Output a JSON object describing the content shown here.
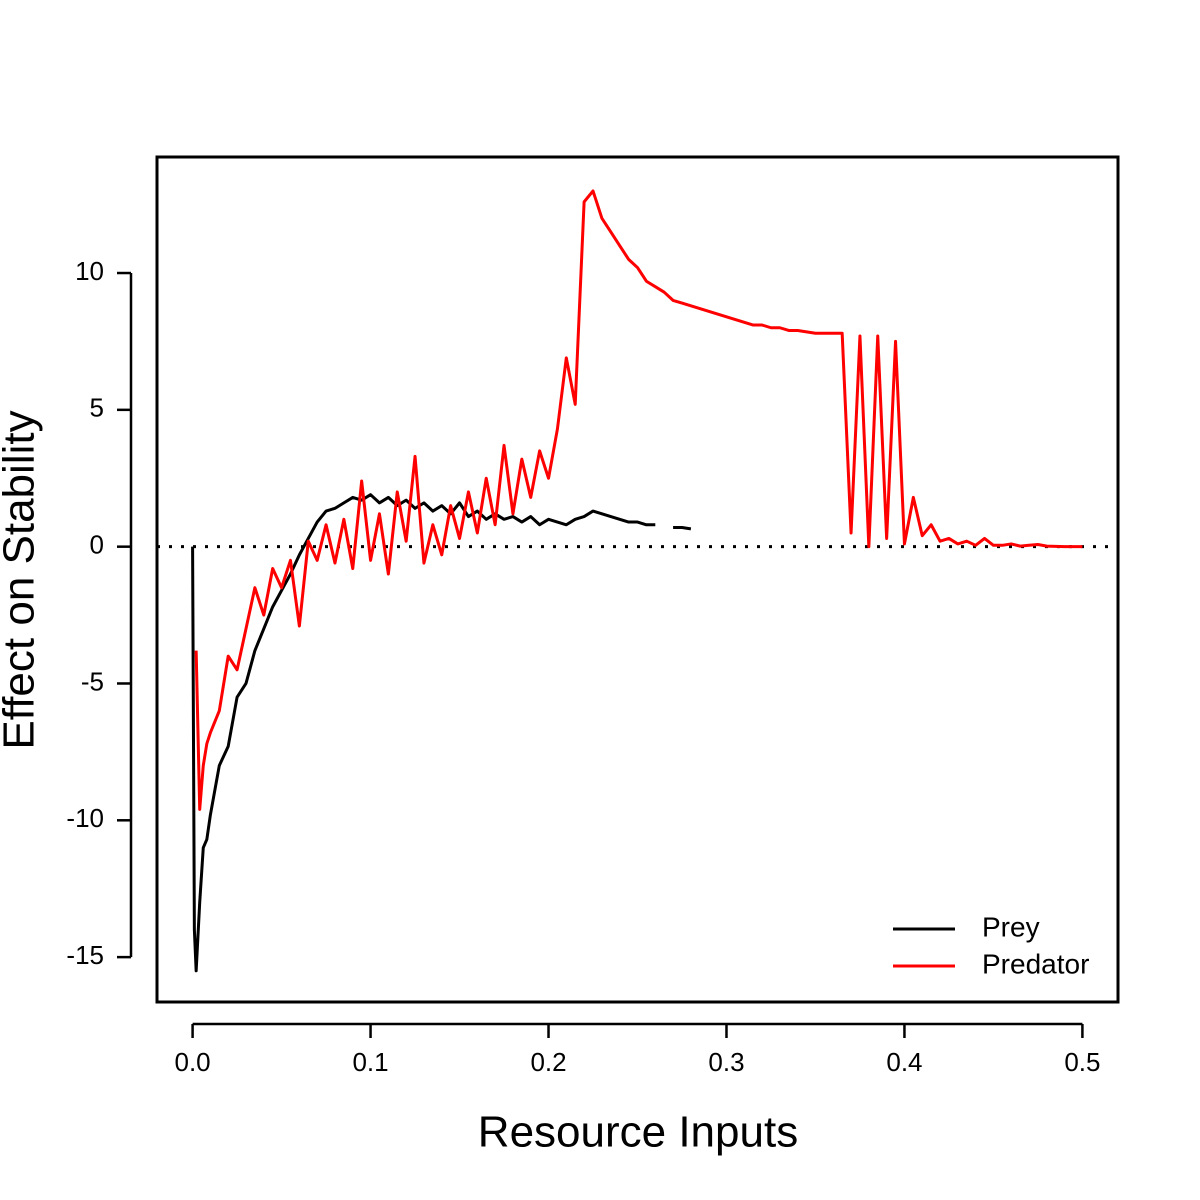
{
  "chart_data": {
    "type": "line",
    "xlabel": "Resource Inputs",
    "ylabel": "Effect on Stability",
    "x": [
      0,
      0.001,
      0.002,
      0.004,
      0.006,
      0.008,
      0.01,
      0.015,
      0.02,
      0.025,
      0.03,
      0.035,
      0.04,
      0.045,
      0.05,
      0.055,
      0.06,
      0.065,
      0.07,
      0.075,
      0.08,
      0.085,
      0.09,
      0.095,
      0.1,
      0.105,
      0.11,
      0.115,
      0.12,
      0.125,
      0.13,
      0.135,
      0.14,
      0.145,
      0.15,
      0.155,
      0.16,
      0.165,
      0.17,
      0.175,
      0.18,
      0.185,
      0.19,
      0.195,
      0.2,
      0.205,
      0.21,
      0.215,
      0.22,
      0.225,
      0.23,
      0.235,
      0.24,
      0.245,
      0.25,
      0.255,
      0.26,
      0.265,
      0.27,
      0.275,
      0.28,
      0.285,
      0.29,
      0.295,
      0.3,
      0.305,
      0.31,
      0.315,
      0.32,
      0.325,
      0.33,
      0.335,
      0.34,
      0.345,
      0.35,
      0.355,
      0.36,
      0.365,
      0.37,
      0.375,
      0.38,
      0.385,
      0.39,
      0.395,
      0.4,
      0.405,
      0.41,
      0.415,
      0.42,
      0.425,
      0.43,
      0.435,
      0.44,
      0.445,
      0.45,
      0.455,
      0.46,
      0.465,
      0.47,
      0.475,
      0.48,
      0.485,
      0.49,
      0.495,
      0.5
    ],
    "series": [
      {
        "name": "Prey",
        "color": "#000000",
        "values": [
          0,
          -14,
          -15.5,
          -13,
          -11,
          -10.7,
          -9.8,
          -8,
          -7.3,
          -5.5,
          -5,
          -3.8,
          -3,
          -2.2,
          -1.6,
          -1,
          -0.3,
          0.3,
          0.9,
          1.3,
          1.4,
          1.6,
          1.8,
          1.7,
          1.9,
          1.6,
          1.8,
          1.5,
          1.7,
          1.4,
          1.6,
          1.3,
          1.5,
          1.2,
          1.6,
          1.1,
          1.3,
          1.0,
          1.2,
          1.0,
          1.1,
          0.9,
          1.1,
          0.8,
          1.0,
          0.9,
          0.8,
          1.0,
          1.1,
          1.3,
          1.2,
          1.1,
          1.0,
          0.9,
          0.9,
          0.8,
          0.8,
          null,
          0.7,
          0.7,
          0.65,
          null,
          null,
          null,
          null,
          null,
          null,
          null,
          null,
          null,
          null,
          null,
          null,
          null,
          null,
          null,
          null,
          null,
          null,
          null,
          null,
          null,
          null,
          null,
          null,
          null,
          null,
          null,
          null,
          null,
          null,
          null,
          null,
          null,
          null,
          null,
          null,
          null,
          null,
          null,
          null,
          null,
          null,
          null,
          null
        ]
      },
      {
        "name": "Predator",
        "color": "#ff0000",
        "values": [
          null,
          null,
          -3.8,
          -9.6,
          -8,
          -7.2,
          -6.8,
          -6,
          -4,
          -4.5,
          -3,
          -1.5,
          -2.5,
          -0.8,
          -1.5,
          -0.5,
          -2.9,
          0.2,
          -0.5,
          0.8,
          -0.6,
          1.0,
          -0.8,
          2.4,
          -0.5,
          1.2,
          -1.0,
          2.0,
          0.2,
          3.3,
          -0.6,
          0.8,
          -0.3,
          1.5,
          0.3,
          2.0,
          0.5,
          2.5,
          0.8,
          3.7,
          1.2,
          3.2,
          1.8,
          3.5,
          2.5,
          4.3,
          6.9,
          5.2,
          12.6,
          13.0,
          12.0,
          11.5,
          11.0,
          10.5,
          10.2,
          9.7,
          9.5,
          9.3,
          9.0,
          8.9,
          8.8,
          8.7,
          8.6,
          8.5,
          8.4,
          8.3,
          8.2,
          8.1,
          8.1,
          8.0,
          8.0,
          7.9,
          7.9,
          7.85,
          7.8,
          7.8,
          7.8,
          7.8,
          0.5,
          7.7,
          0.0,
          7.7,
          0.3,
          7.5,
          0.1,
          1.8,
          0.4,
          0.8,
          0.2,
          0.3,
          0.1,
          0.2,
          0.05,
          0.3,
          0.05,
          0.05,
          0.1,
          0.02,
          0.05,
          0.08,
          0.02,
          0.01,
          0,
          0,
          0
        ]
      }
    ],
    "xlim": [
      -0.02,
      0.52
    ],
    "ylim": [
      -16.64,
      14.24
    ],
    "xticks": [
      {
        "value": 0,
        "label": "0.0"
      },
      0.1,
      0.2,
      0.3,
      0.4,
      0.5
    ],
    "yticks": [
      -15,
      -10,
      -5,
      0,
      5,
      10
    ],
    "hline": 0,
    "legend": "bottom-right"
  }
}
